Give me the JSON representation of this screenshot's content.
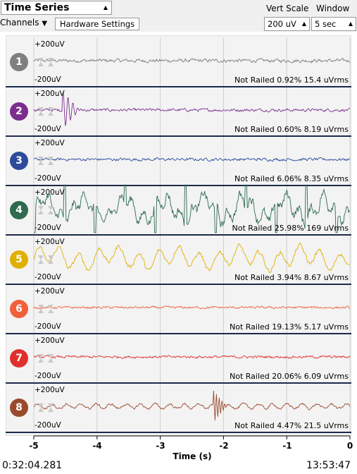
{
  "header": {
    "title": "Time Series",
    "vert_scale_label": "Vert Scale",
    "window_label": "Window",
    "channels_label": "Channels",
    "hardware_settings_label": "Hardware Settings",
    "vert_scale_value": "200 uV",
    "window_value": "5 sec"
  },
  "channels": [
    {
      "number": "1",
      "color": "#7f7f7f",
      "line_color": "#7a7a7a",
      "plus": "+200uV",
      "minus": "-200uV",
      "stats": "Not Railed 0.92% 15.4 uVrms",
      "kind": "noise",
      "amp": 0.12
    },
    {
      "number": "2",
      "color": "#7b2e8e",
      "line_color": "#7b2e8e",
      "plus": "+200uV",
      "minus": "-200uV",
      "stats": "Not Railed 0.60% 8.19 uVrms",
      "kind": "spike",
      "amp": 0.1
    },
    {
      "number": "3",
      "color": "#2c4b9a",
      "line_color": "#2c4b9a",
      "plus": "+200uV",
      "minus": "-200uV",
      "stats": "Not Railed 6.06% 8.35 uVrms",
      "kind": "noise",
      "amp": 0.1
    },
    {
      "number": "4",
      "color": "#2e6b4f",
      "line_color": "#2e6b4f",
      "plus": "+200uV",
      "minus": "-200uV",
      "stats": "Not Railed 25.98% 169 uVrms",
      "kind": "large",
      "amp": 1.0
    },
    {
      "number": "5",
      "color": "#e0b000",
      "line_color": "#e0b000",
      "plus": "+200uV",
      "minus": "-200uV",
      "stats": "Not Railed 3.94% 8.67 uVrms",
      "kind": "wave",
      "amp": 0.5
    },
    {
      "number": "6",
      "color": "#f0603a",
      "line_color": "#f0603a",
      "plus": "+200uV",
      "minus": "-200uV",
      "stats": "Not Railed 19.13% 5.17 uVrms",
      "kind": "noise",
      "amp": 0.08
    },
    {
      "number": "7",
      "color": "#e0302e",
      "line_color": "#e0302e",
      "plus": "+200uV",
      "minus": "-200uV",
      "stats": "Not Railed 20.06% 6.09 uVrms",
      "kind": "noise",
      "amp": 0.09
    },
    {
      "number": "8",
      "color": "#9a4a2c",
      "line_color": "#9a4a2c",
      "plus": "+200uV",
      "minus": "-200uV",
      "stats": "Not Railed 4.47% 21.5 uVrms",
      "kind": "burst",
      "amp": 0.2
    }
  ],
  "chart_data": {
    "type": "line",
    "title": "Time Series",
    "xlabel": "Time (s)",
    "ylabel": "",
    "xlim": [
      -5,
      0
    ],
    "ylim": [
      -200,
      200
    ],
    "x_ticks": [
      "-5",
      "-4",
      "-3",
      "-2",
      "-1",
      "0"
    ],
    "y_units": "uV",
    "series_names": [
      "1",
      "2",
      "3",
      "4",
      "5",
      "6",
      "7",
      "8"
    ]
  },
  "footer": {
    "elapsed": "0:32:04.281",
    "clock": "13:53:47"
  }
}
